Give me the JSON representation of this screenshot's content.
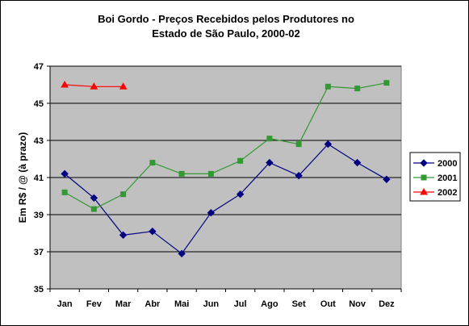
{
  "chart_data": {
    "type": "line",
    "title_line1": "Boi Gordo - Preços Recebidos pelos Produtores no",
    "title_line2": "Estado de São Paulo, 2000-02",
    "ylabel": "Em R$ / @ (à prazo)",
    "xlabel": "",
    "categories": [
      "Jan",
      "Fev",
      "Mar",
      "Abr",
      "Mai",
      "Jun",
      "Jul",
      "Ago",
      "Set",
      "Out",
      "Nov",
      "Dez"
    ],
    "y_ticks": [
      "35",
      "37",
      "39",
      "41",
      "43",
      "45",
      "47"
    ],
    "ylim": [
      35,
      47
    ],
    "grid": true,
    "legend_position": "right",
    "series": [
      {
        "name": "2000",
        "color": "#000080",
        "marker": "diamond",
        "values": [
          41.2,
          39.9,
          37.9,
          38.1,
          36.9,
          39.1,
          40.1,
          41.8,
          41.1,
          42.8,
          41.8,
          40.9
        ]
      },
      {
        "name": "2001",
        "color": "#339933",
        "marker": "square",
        "values": [
          40.2,
          39.3,
          40.1,
          41.8,
          41.2,
          41.2,
          41.9,
          43.1,
          42.8,
          45.9,
          45.8,
          46.1
        ]
      },
      {
        "name": "2002",
        "color": "#ff0000",
        "marker": "triangle",
        "values": [
          46.0,
          45.9,
          45.9,
          null,
          null,
          null,
          null,
          null,
          null,
          null,
          null,
          null
        ]
      }
    ]
  }
}
